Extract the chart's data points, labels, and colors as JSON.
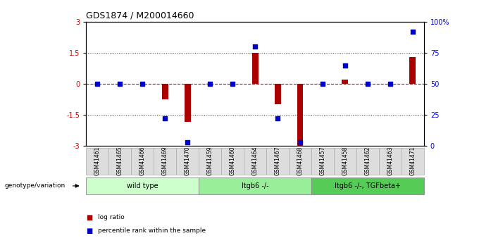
{
  "title": "GDS1874 / M200014660",
  "samples": [
    "GSM41461",
    "GSM41465",
    "GSM41466",
    "GSM41469",
    "GSM41470",
    "GSM41459",
    "GSM41460",
    "GSM41464",
    "GSM41467",
    "GSM41468",
    "GSM41457",
    "GSM41458",
    "GSM41462",
    "GSM41463",
    "GSM41471"
  ],
  "log_ratio": [
    0.0,
    0.0,
    0.0,
    -0.75,
    -1.85,
    0.0,
    0.0,
    1.5,
    -1.0,
    -3.0,
    0.0,
    0.2,
    0.0,
    0.0,
    1.3
  ],
  "percentile_rank": [
    50,
    50,
    50,
    22,
    3,
    50,
    50,
    80,
    22,
    3,
    50,
    65,
    50,
    50,
    92
  ],
  "groups": [
    {
      "label": "wild type",
      "start": 0,
      "end": 4,
      "color": "#ccffcc"
    },
    {
      "label": "Itgb6 -/-",
      "start": 5,
      "end": 9,
      "color": "#99ee99"
    },
    {
      "label": "Itgb6 -/-, TGFbeta+",
      "start": 10,
      "end": 14,
      "color": "#55cc55"
    }
  ],
  "ylim_left": [
    -3,
    3
  ],
  "ylim_right": [
    0,
    100
  ],
  "yticks_left": [
    -3,
    -1.5,
    0,
    1.5,
    3
  ],
  "ytick_labels_left": [
    "-3",
    "-1.5",
    "0",
    "1.5",
    "3"
  ],
  "yticks_right": [
    0,
    25,
    50,
    75,
    100
  ],
  "ytick_labels_right": [
    "0",
    "25",
    "50",
    "75",
    "100%"
  ],
  "bar_color": "#aa0000",
  "dot_color": "#0000cc",
  "zero_line_color": "#cc0000",
  "grid_color": "#000000",
  "background_color": "#ffffff",
  "legend_red": "log ratio",
  "legend_blue": "percentile rank within the sample",
  "genotype_label": "genotype/variation",
  "dot_size": 25,
  "bar_width": 0.28
}
